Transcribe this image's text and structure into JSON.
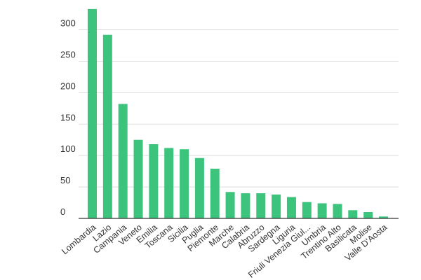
{
  "chart_data": {
    "type": "bar",
    "categories": [
      "Lombardia",
      "Lazio",
      "Campania",
      "Veneto",
      "Emilia",
      "Toscana",
      "Sicilia",
      "Puglia",
      "Piemonte",
      "Marche",
      "Calabria",
      "Abruzzo",
      "Sardegna",
      "Liguria",
      "Friuli Venezia Giul...",
      "Umbria",
      "Trentino Alto",
      "Basilicata",
      "Molise",
      "Valle D'Aosta"
    ],
    "values": [
      333,
      292,
      182,
      125,
      118,
      112,
      110,
      96,
      79,
      42,
      40,
      40,
      38,
      34,
      26,
      24,
      23,
      13,
      10,
      3
    ],
    "ylim": [
      0,
      350
    ],
    "yticks": [
      0,
      50,
      100,
      150,
      200,
      250,
      300
    ],
    "title": "",
    "xlabel": "",
    "ylabel": "",
    "grid": true,
    "bar_color": "#3cc47c"
  }
}
